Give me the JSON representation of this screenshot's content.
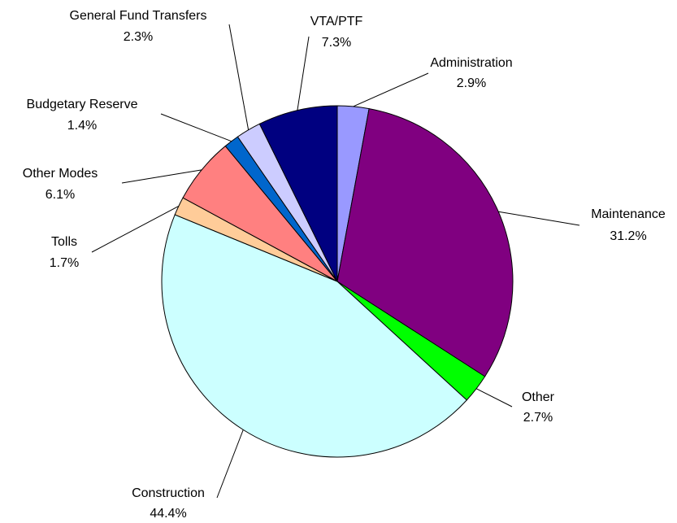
{
  "chart_data": {
    "type": "pie",
    "categories": [
      "Administration",
      "Maintenance",
      "Other",
      "Construction",
      "Tolls",
      "Other Modes",
      "Budgetary Reserve",
      "General Fund Transfers",
      "VTA/PTF"
    ],
    "values": [
      2.9,
      31.2,
      2.7,
      44.4,
      1.7,
      6.1,
      1.4,
      2.3,
      7.3
    ],
    "value_labels": [
      "2.9%",
      "31.2%",
      "2.7%",
      "44.4%",
      "1.7%",
      "6.1%",
      "1.4%",
      "2.3%",
      "7.3%"
    ],
    "colors": [
      "#9999ff",
      "#800080",
      "#00ff00",
      "#ccffff",
      "#ffcc99",
      "#ff8080",
      "#0066cc",
      "#ccccff",
      "#000080"
    ]
  }
}
